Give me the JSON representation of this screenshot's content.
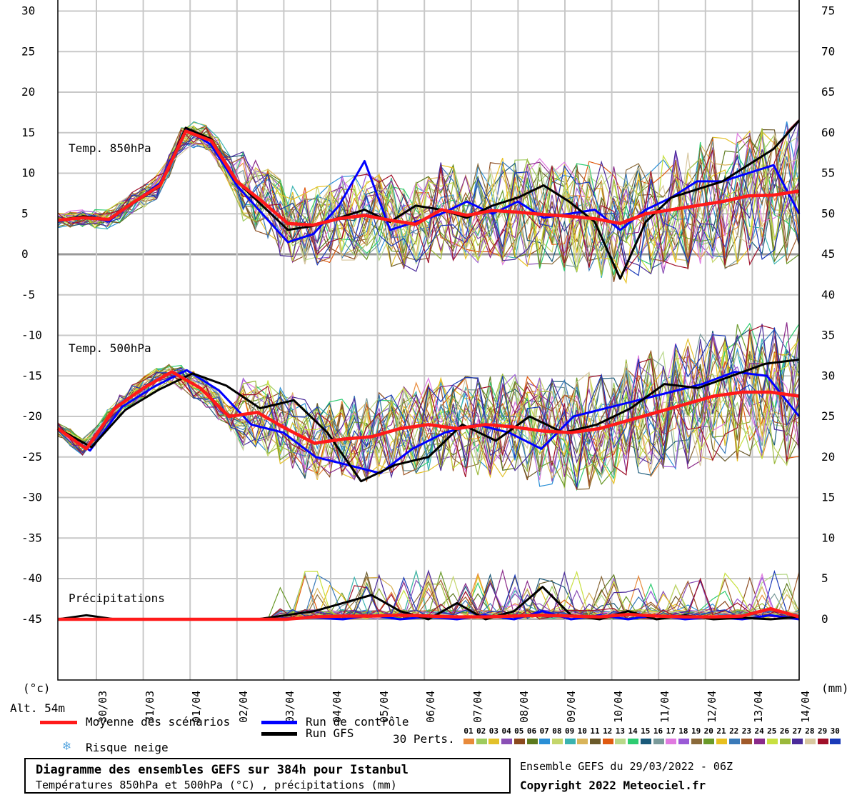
{
  "chart_data": {
    "type": "line",
    "title": "Diagramme des ensembles GEFS sur 384h pour Istanbul",
    "subtitle": "Températures 850hPa et 500hPa (°C) , précipitations (mm)",
    "run_info": "Ensemble GEFS du 29/03/2022 - 06Z",
    "copyright": "Copyright 2022 Meteociel.fr",
    "left_axis": {
      "unit_label": "(°c)",
      "ticks": [
        30,
        25,
        20,
        15,
        10,
        5,
        0,
        -5,
        -10,
        -15,
        -20,
        -25,
        -30,
        -35,
        -40,
        -45
      ],
      "range": [
        -52.5,
        30
      ]
    },
    "right_axis": {
      "unit_label": "(mm)",
      "ticks": [
        75,
        70,
        65,
        60,
        55,
        50,
        45,
        40,
        35,
        30,
        25,
        20,
        15,
        10,
        5,
        0
      ]
    },
    "altitude_label": "Alt. 54m",
    "x_dates": [
      "30/03",
      "31/03",
      "01/04",
      "02/04",
      "03/04",
      "04/04",
      "05/04",
      "06/04",
      "07/04",
      "08/04",
      "09/04",
      "10/04",
      "11/04",
      "12/04",
      "13/04",
      "14/04"
    ],
    "panel_labels": {
      "t850": "Temp. 850hPa",
      "t500": "Temp. 500hPa",
      "precip": "Précipitations"
    },
    "legend": {
      "mean": "Moyenne des scénarios",
      "control": "Run de contrôle",
      "gfs": "Run GFS",
      "snow": "Risque neige",
      "perts": "30 Perts.",
      "mean_color": "#ff1a1a",
      "control_color": "#0000ff",
      "gfs_color": "#000000"
    },
    "pert_ids": [
      "01",
      "02",
      "03",
      "04",
      "05",
      "06",
      "07",
      "08",
      "09",
      "10",
      "11",
      "12",
      "13",
      "14",
      "15",
      "16",
      "17",
      "18",
      "19",
      "20",
      "21",
      "22",
      "23",
      "24",
      "25",
      "26",
      "27",
      "28",
      "29",
      "30"
    ],
    "pert_colors": [
      "#e88a3a",
      "#9ecb5e",
      "#e3c12a",
      "#8a4fb5",
      "#8b4a1e",
      "#5c7a1e",
      "#2a8fd6",
      "#c4d66b",
      "#3ab3b0",
      "#d9b45a",
      "#6b5a2a",
      "#e05a10",
      "#b8d88a",
      "#2ecc71",
      "#1a5a7a",
      "#7a9a9a",
      "#e07ae0",
      "#9a5ad6",
      "#8a6a3a",
      "#6a9a2a",
      "#e8c020",
      "#3a7ab8",
      "#a05a2a",
      "#8a2a8a",
      "#c8e040",
      "#9ab83a",
      "#4a2a9a",
      "#d8c8a0",
      "#a0102a",
      "#1a3ab8"
    ],
    "series_850": {
      "mean": [
        4.2,
        4.5,
        4.3,
        6.5,
        8.5,
        15.2,
        14,
        9,
        6.5,
        3.8,
        3.6,
        4.4,
        4.8,
        4.2,
        3.7,
        5.5,
        4.8,
        5.4,
        5.2,
        4.9,
        4.7,
        4.4,
        3.8,
        5,
        5.5,
        6,
        6.5,
        7.2,
        7.3,
        7.8
      ],
      "control": [
        4.2,
        4.6,
        4.1,
        6.5,
        8.8,
        15.5,
        13.5,
        8.5,
        5,
        1.5,
        2.5,
        6,
        11.5,
        3,
        4,
        5,
        6.5,
        5,
        6.5,
        4.5,
        5,
        5.5,
        3,
        5.5,
        7,
        9,
        9,
        10,
        11,
        5
      ],
      "gfs": [
        4.2,
        4.7,
        4.3,
        6.4,
        8.4,
        15.6,
        14.2,
        9,
        6,
        3,
        3.5,
        4.5,
        5.5,
        4,
        6,
        5.5,
        4.5,
        6,
        7,
        8.5,
        6.5,
        4,
        -3,
        4,
        7,
        8,
        9,
        11,
        13,
        16.5
      ]
    },
    "series_500": {
      "mean": [
        -21.5,
        -24,
        -19,
        -16.5,
        -14.5,
        -16.5,
        -20,
        -19.5,
        -21.5,
        -23.3,
        -22.8,
        -22.5,
        -21.5,
        -21,
        -21.5,
        -21,
        -21.3,
        -21.8,
        -22,
        -21.5,
        -20.5,
        -19.5,
        -18.5,
        -17.5,
        -17,
        -17,
        -17.5
      ],
      "control": [
        -21.5,
        -24.2,
        -18.8,
        -16.3,
        -14.3,
        -16.8,
        -21,
        -22,
        -25,
        -26,
        -27,
        -24,
        -22,
        -21,
        -22,
        -24,
        -20,
        -19,
        -18,
        -17,
        -16,
        -14.5,
        -15,
        -20
      ],
      "gfs": [
        -21.5,
        -23.8,
        -19.2,
        -16.7,
        -14.7,
        -16.2,
        -19,
        -18,
        -22,
        -28,
        -26,
        -25,
        -21,
        -23,
        -20,
        -22,
        -21,
        -19,
        -16,
        -16.5,
        -15,
        -13.5,
        -13
      ]
    },
    "series_precip_mm": {
      "mean": [
        0,
        0,
        0,
        0,
        0,
        0,
        0,
        0,
        0,
        0.3,
        0.4,
        0.4,
        0.5,
        0.4,
        0.3,
        0.3,
        0.4,
        0.5,
        0.4,
        0.3,
        0.6,
        0.4,
        0.3,
        0.3,
        0.4,
        1.3,
        0.3
      ],
      "control": [
        0,
        0,
        0,
        0,
        0,
        0,
        0,
        0,
        0,
        0.2,
        0,
        0.5,
        0,
        0.3,
        0,
        0.5,
        0,
        1,
        0,
        0.5,
        0,
        0.5,
        0,
        0.3,
        0,
        0.5,
        0
      ],
      "gfs": [
        0,
        0.5,
        0,
        0,
        0,
        0,
        0,
        0,
        0.5,
        1,
        2,
        3,
        1,
        0,
        2,
        0,
        1,
        4,
        0.5,
        0,
        1,
        0,
        0.5,
        0,
        0.2,
        0,
        0.3
      ]
    }
  }
}
